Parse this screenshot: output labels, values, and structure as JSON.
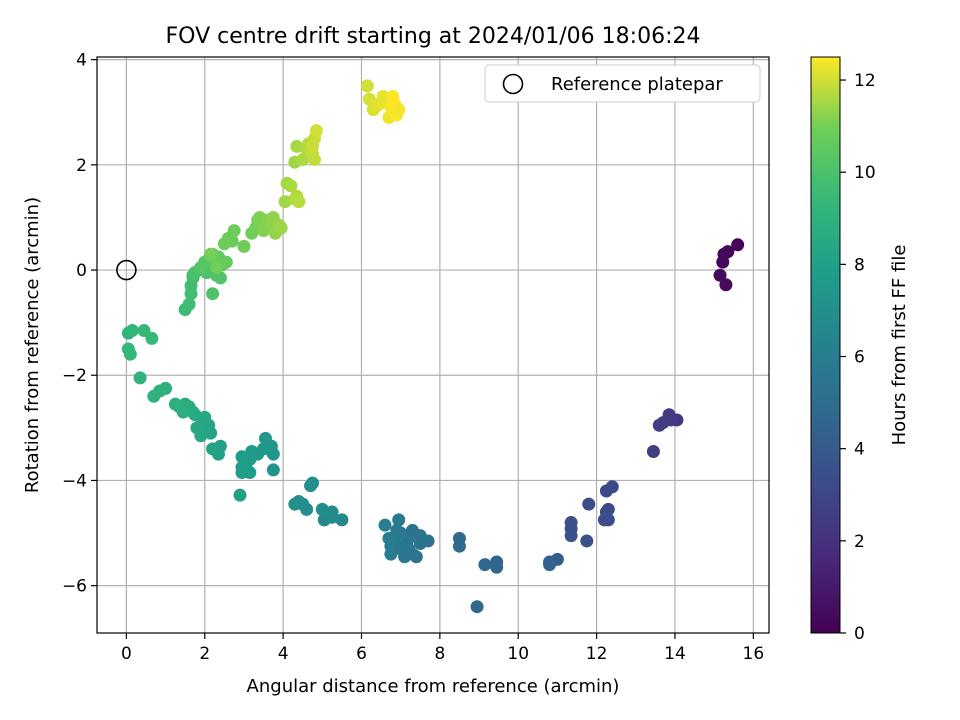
{
  "chart_data": {
    "type": "scatter",
    "title": "FOV centre drift starting at 2024/01/06 18:06:24",
    "xlabel": "Angular distance from reference (arcmin)",
    "ylabel": "Rotation from reference (arcmin)",
    "xlim": [
      -0.75,
      16.4
    ],
    "ylim": [
      -6.9,
      4.05
    ],
    "xticks": [
      0,
      2,
      4,
      6,
      8,
      10,
      12,
      14,
      16
    ],
    "yticks": [
      -6,
      -4,
      -2,
      0,
      2,
      4
    ],
    "grid": true,
    "legend": {
      "position": "upper-right",
      "entries": [
        {
          "label": "Reference platepar",
          "marker": "open-circle"
        }
      ]
    },
    "reference_point": {
      "x": 0,
      "y": 0
    },
    "colorbar": {
      "label": "Hours from first FF file",
      "colormap": "viridis",
      "range": [
        0,
        12.5
      ],
      "ticks": [
        0,
        2,
        4,
        6,
        8,
        10,
        12
      ]
    },
    "series": [
      {
        "x": [
          15.6,
          15.35,
          15.25,
          15.22,
          15.15,
          15.3,
          14.05,
          13.85,
          13.9,
          13.6,
          13.7,
          13.45,
          12.4,
          12.25,
          12.3,
          12.25,
          12.3,
          12.2,
          11.8,
          11.35,
          11.35,
          11.35,
          11.75,
          11.0,
          10.8,
          10.8,
          9.45,
          9.45,
          9.15,
          8.95,
          8.5,
          8.5,
          7.7,
          7.5,
          7.4,
          7.3,
          7.2,
          7.2,
          7.1,
          7.0,
          6.95,
          6.9,
          6.85,
          6.75,
          6.75,
          6.7,
          6.6,
          7.0,
          7.15,
          7.3,
          7.5,
          5.5,
          5.25,
          5.25,
          5.05,
          5.0,
          4.75,
          4.7,
          4.6,
          4.5,
          4.4,
          4.3,
          3.75,
          3.75,
          3.7,
          3.55,
          3.5,
          3.35,
          3.2,
          3.15,
          3.15,
          3.05,
          2.95,
          2.95,
          2.95,
          2.9,
          2.4,
          2.35,
          2.2,
          2.15,
          2.1,
          2.05,
          2.0,
          1.95,
          1.9,
          1.8,
          1.75,
          1.7,
          1.6,
          1.55,
          1.5,
          1.45,
          1.35,
          1.25,
          1.0,
          0.85,
          0.7,
          0.35,
          0.15,
          0.05,
          0.05,
          0.1,
          0.45,
          0.65,
          1.5,
          1.6,
          1.65,
          1.65,
          1.7,
          1.7,
          1.75,
          1.85,
          2.0,
          2.05,
          2.2,
          2.3,
          2.4,
          2.45,
          1.9,
          2.0,
          2.1,
          2.15,
          2.2,
          2.3,
          2.35,
          2.4,
          2.55,
          2.6,
          2.7,
          2.75,
          2.5,
          2.3,
          2.15,
          3.0,
          3.2,
          3.3,
          3.35,
          3.4,
          3.5,
          3.6,
          3.7,
          3.75,
          3.8,
          3.9,
          3.95,
          4.05,
          4.1,
          4.2,
          4.3,
          4.35,
          4.4,
          4.3,
          4.35,
          4.5,
          4.6,
          4.65,
          4.7,
          4.75,
          4.8,
          4.8,
          4.75,
          4.85,
          6.15,
          6.2,
          6.3,
          6.35,
          6.45,
          6.55,
          6.6,
          6.7,
          6.75,
          6.8,
          6.85,
          6.9,
          6.95
        ],
        "y": [
          0.48,
          0.35,
          0.3,
          0.15,
          -0.1,
          -0.28,
          -2.85,
          -2.75,
          -2.85,
          -2.95,
          -2.9,
          -3.45,
          -4.12,
          -4.2,
          -4.55,
          -4.6,
          -4.75,
          -4.75,
          -4.45,
          -4.8,
          -4.92,
          -5.05,
          -5.15,
          -5.5,
          -5.55,
          -5.6,
          -5.55,
          -5.65,
          -5.6,
          -6.4,
          -5.1,
          -5.25,
          -5.15,
          -5.2,
          -5.45,
          -5.4,
          -5.3,
          -5.1,
          -5.45,
          -5.0,
          -4.75,
          -4.95,
          -5.15,
          -5.25,
          -5.4,
          -5.1,
          -4.85,
          -5.3,
          -5.2,
          -4.95,
          -5.05,
          -4.75,
          -4.7,
          -4.6,
          -4.75,
          -4.55,
          -4.05,
          -4.1,
          -4.55,
          -4.45,
          -4.4,
          -4.45,
          -3.8,
          -3.5,
          -3.35,
          -3.2,
          -3.4,
          -3.5,
          -3.45,
          -3.6,
          -3.85,
          -3.7,
          -3.55,
          -3.75,
          -3.85,
          -4.28,
          -3.35,
          -3.5,
          -3.4,
          -3.1,
          -2.95,
          -3.05,
          -2.8,
          -2.85,
          -3.15,
          -3.0,
          -2.75,
          -2.7,
          -2.6,
          -2.65,
          -2.55,
          -2.7,
          -2.6,
          -2.55,
          -2.25,
          -2.3,
          -2.4,
          -2.05,
          -1.15,
          -1.2,
          -1.5,
          -1.6,
          -1.15,
          -1.3,
          -0.75,
          -0.65,
          -0.3,
          -0.45,
          -0.15,
          -0.1,
          -0.05,
          0.0,
          0.05,
          -0.05,
          -0.45,
          -0.1,
          -0.15,
          0.1,
          0.05,
          0.15,
          0.2,
          0.25,
          0.3,
          0.2,
          0.25,
          0.15,
          0.15,
          0.6,
          0.55,
          0.75,
          0.5,
          0.05,
          0.3,
          0.45,
          0.7,
          0.8,
          0.95,
          1.0,
          0.75,
          0.95,
          0.85,
          1.0,
          0.7,
          0.85,
          0.8,
          1.3,
          1.65,
          1.6,
          1.35,
          1.4,
          1.3,
          2.05,
          2.35,
          2.1,
          2.3,
          2.4,
          2.25,
          2.2,
          2.1,
          2.5,
          2.35,
          2.65,
          3.5,
          3.25,
          3.05,
          3.1,
          3.15,
          3.3,
          3.25,
          2.9,
          3.1,
          3.3,
          3.15,
          2.95,
          3.05
        ],
        "hours": [
          0.1,
          0.2,
          0.25,
          0.3,
          0.35,
          0.4,
          2.3,
          2.4,
          2.45,
          2.5,
          2.55,
          2.6,
          3.1,
          3.15,
          3.2,
          3.25,
          3.3,
          3.35,
          3.4,
          3.45,
          3.5,
          3.55,
          3.6,
          4.2,
          4.3,
          4.35,
          4.5,
          4.6,
          4.7,
          4.75,
          4.8,
          4.85,
          5.3,
          5.35,
          5.4,
          5.45,
          5.5,
          5.55,
          5.6,
          5.65,
          5.7,
          5.75,
          5.8,
          5.85,
          5.9,
          5.95,
          6.0,
          5.6,
          5.5,
          5.4,
          5.35,
          6.6,
          6.65,
          6.7,
          6.75,
          6.8,
          6.85,
          6.9,
          6.95,
          7.0,
          7.05,
          7.1,
          7.3,
          7.35,
          7.4,
          7.45,
          7.5,
          7.55,
          7.6,
          7.65,
          7.7,
          7.75,
          7.8,
          7.85,
          7.9,
          7.95,
          8.0,
          8.05,
          8.1,
          8.15,
          8.2,
          8.25,
          8.3,
          8.35,
          8.4,
          8.45,
          8.5,
          8.55,
          8.6,
          8.65,
          8.7,
          8.75,
          8.8,
          8.85,
          8.9,
          8.95,
          9.0,
          9.05,
          9.2,
          9.25,
          9.3,
          9.35,
          9.4,
          9.45,
          9.6,
          9.65,
          9.7,
          9.75,
          9.8,
          9.85,
          9.9,
          9.95,
          10.0,
          10.05,
          10.1,
          10.15,
          10.2,
          10.25,
          10.3,
          10.35,
          10.4,
          10.45,
          10.5,
          10.55,
          10.6,
          10.65,
          10.7,
          10.75,
          10.8,
          10.85,
          10.9,
          10.95,
          11.0,
          10.9,
          10.95,
          11.0,
          11.05,
          11.1,
          11.15,
          11.2,
          11.25,
          11.3,
          11.35,
          11.4,
          11.45,
          11.5,
          11.55,
          11.6,
          11.65,
          11.7,
          11.75,
          11.5,
          11.55,
          11.6,
          11.65,
          11.7,
          11.75,
          11.8,
          11.85,
          11.9,
          11.95,
          12.0,
          12.0,
          12.05,
          12.1,
          12.15,
          12.2,
          12.25,
          12.3,
          12.35,
          12.4,
          12.45,
          12.5,
          12.45,
          12.4
        ]
      }
    ]
  }
}
